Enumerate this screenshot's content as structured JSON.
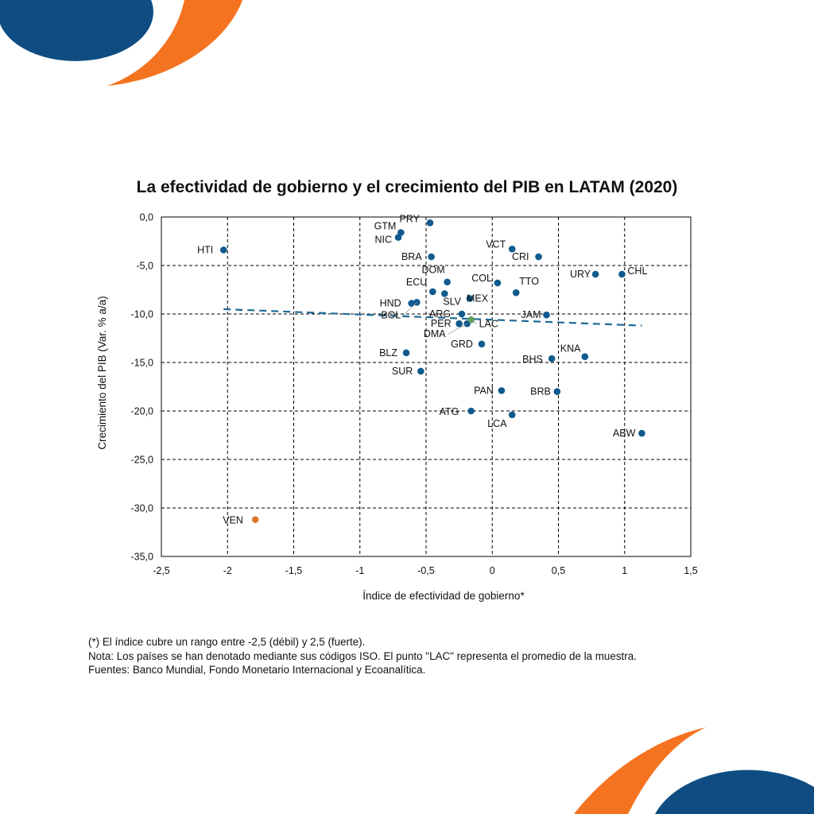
{
  "colors": {
    "brand_blue": "#0f4c81",
    "brand_orange": "#f47321",
    "point_blue": "#0f5a8e",
    "point_orange": "#e0782b",
    "point_green": "#5aa05a",
    "trend": "#1f6b99"
  },
  "decorations": [
    "brand-blue-circle-top-left",
    "brand-orange-arc-top-left",
    "brand-orange-arc-bottom-right",
    "brand-blue-circle-bottom-right"
  ],
  "chart_data": {
    "type": "scatter",
    "title": "La efectividad de gobierno y el crecimiento del PIB en LATAM (2020)",
    "xlabel": "Índice de efectividad de gobierno*",
    "ylabel": "Crecimiento del PIB (Var. % a/a)",
    "xlim": [
      -2.5,
      1.5
    ],
    "ylim": [
      -35,
      0
    ],
    "xticks": [
      -2.5,
      -2,
      -1.5,
      -1,
      -0.5,
      0,
      0.5,
      1,
      1.5
    ],
    "xtick_labels": [
      "-2,5",
      "-2",
      "-1,5",
      "-1",
      "-0,5",
      "0",
      "0,5",
      "1",
      "1,5"
    ],
    "yticks": [
      0,
      -5,
      -10,
      -15,
      -20,
      -25,
      -30,
      -35
    ],
    "ytick_labels": [
      "0,0",
      "-5,0",
      "-10,0",
      "-15,0",
      "-20,0",
      "-25,0",
      "-30,0",
      "-35,0"
    ],
    "grid": true,
    "trendline": {
      "x": [
        -2.03,
        1.13
      ],
      "y": [
        -9.5,
        -11.2
      ],
      "style": "dashed"
    },
    "points": [
      {
        "label": "PRY",
        "x": -0.47,
        "y": -0.6,
        "group": "country"
      },
      {
        "label": "GTM",
        "x": -0.69,
        "y": -1.6,
        "group": "country"
      },
      {
        "label": "NIC",
        "x": -0.71,
        "y": -2.1,
        "group": "country"
      },
      {
        "label": "HTI",
        "x": -2.03,
        "y": -3.4,
        "group": "country"
      },
      {
        "label": "VCT",
        "x": 0.15,
        "y": -3.3,
        "group": "country"
      },
      {
        "label": "CRI",
        "x": 0.35,
        "y": -4.1,
        "group": "country"
      },
      {
        "label": "BRA",
        "x": -0.46,
        "y": -4.1,
        "group": "country"
      },
      {
        "label": "URY",
        "x": 0.78,
        "y": -5.9,
        "group": "country"
      },
      {
        "label": "CHL",
        "x": 0.98,
        "y": -5.9,
        "group": "country"
      },
      {
        "label": "DOM",
        "x": -0.34,
        "y": -6.7,
        "group": "country"
      },
      {
        "label": "COL",
        "x": 0.04,
        "y": -6.8,
        "group": "country"
      },
      {
        "label": "TTO",
        "x": 0.18,
        "y": -7.8,
        "group": "country"
      },
      {
        "label": "ECU",
        "x": -0.45,
        "y": -7.7,
        "group": "country"
      },
      {
        "label": "SLV",
        "x": -0.36,
        "y": -7.9,
        "group": "country"
      },
      {
        "label": "MEX",
        "x": -0.17,
        "y": -8.4,
        "group": "country"
      },
      {
        "label": "HND",
        "x": -0.61,
        "y": -8.9,
        "group": "country"
      },
      {
        "label": "BOL",
        "x": -0.57,
        "y": -8.8,
        "group": "country"
      },
      {
        "label": "ARG",
        "x": -0.23,
        "y": -10.0,
        "group": "country"
      },
      {
        "label": "JAM",
        "x": 0.41,
        "y": -10.1,
        "group": "country"
      },
      {
        "label": "PER",
        "x": -0.25,
        "y": -11.0,
        "group": "country"
      },
      {
        "label": "DMA",
        "x": -0.19,
        "y": -11.0,
        "group": "country"
      },
      {
        "label": "LAC",
        "x": -0.16,
        "y": -10.6,
        "group": "average"
      },
      {
        "label": "GRD",
        "x": -0.08,
        "y": -13.1,
        "group": "country"
      },
      {
        "label": "BLZ",
        "x": -0.65,
        "y": -14.0,
        "group": "country"
      },
      {
        "label": "KNA",
        "x": 0.7,
        "y": -14.4,
        "group": "country"
      },
      {
        "label": "BHS",
        "x": 0.45,
        "y": -14.6,
        "group": "country"
      },
      {
        "label": "SUR",
        "x": -0.54,
        "y": -15.9,
        "group": "country"
      },
      {
        "label": "PAN",
        "x": 0.07,
        "y": -17.9,
        "group": "country"
      },
      {
        "label": "BRB",
        "x": 0.49,
        "y": -18.0,
        "group": "country"
      },
      {
        "label": "ATG",
        "x": -0.16,
        "y": -20.0,
        "group": "country"
      },
      {
        "label": "LCA",
        "x": 0.15,
        "y": -20.4,
        "group": "country"
      },
      {
        "label": "ABW",
        "x": 1.13,
        "y": -22.3,
        "group": "country"
      },
      {
        "label": "VEN",
        "x": -1.79,
        "y": -31.2,
        "group": "outlier"
      }
    ]
  },
  "footnotes": {
    "line1": "(*) El índice cubre un rango entre -2,5 (débil) y 2,5 (fuerte).",
    "line2": "Nota: Los países se han denotado mediante sus códigos ISO. El punto \"LAC\" representa el promedio de la muestra.",
    "line3": "Fuentes: Banco Mundial, Fondo Monetario Internacional y Ecoanalítica."
  }
}
